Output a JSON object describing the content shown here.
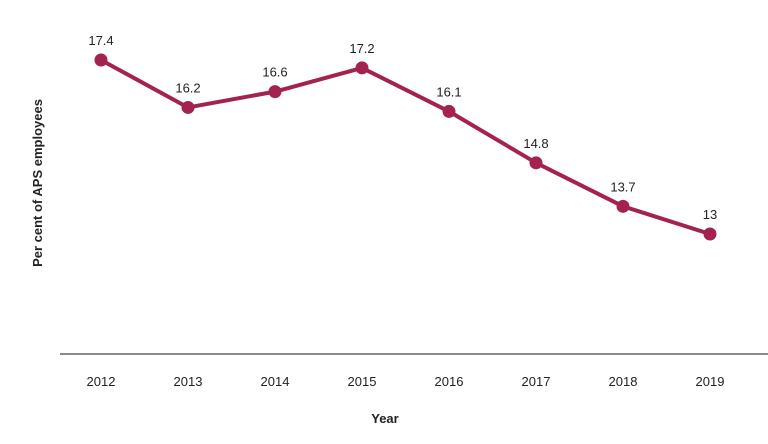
{
  "chart_data": {
    "type": "line",
    "title": "",
    "xlabel": "Year",
    "ylabel": "Per cent of APS employees",
    "categories": [
      "2012",
      "2013",
      "2014",
      "2015",
      "2016",
      "2017",
      "2018",
      "2019"
    ],
    "series": [
      {
        "name": "Per cent of APS employees",
        "values": [
          17.4,
          16.2,
          16.6,
          17.2,
          16.1,
          14.8,
          13.7,
          13
        ],
        "value_labels": [
          "17.4",
          "16.2",
          "16.6",
          "17.2",
          "16.1",
          "14.8",
          "13.7",
          "13"
        ],
        "color": "#a3224f"
      }
    ],
    "ylim": [
      9.5,
      18.5
    ],
    "grid": false,
    "legend": "none"
  },
  "colors": {
    "series": "#a3224f",
    "axis": "#444444",
    "text": "#222222"
  }
}
